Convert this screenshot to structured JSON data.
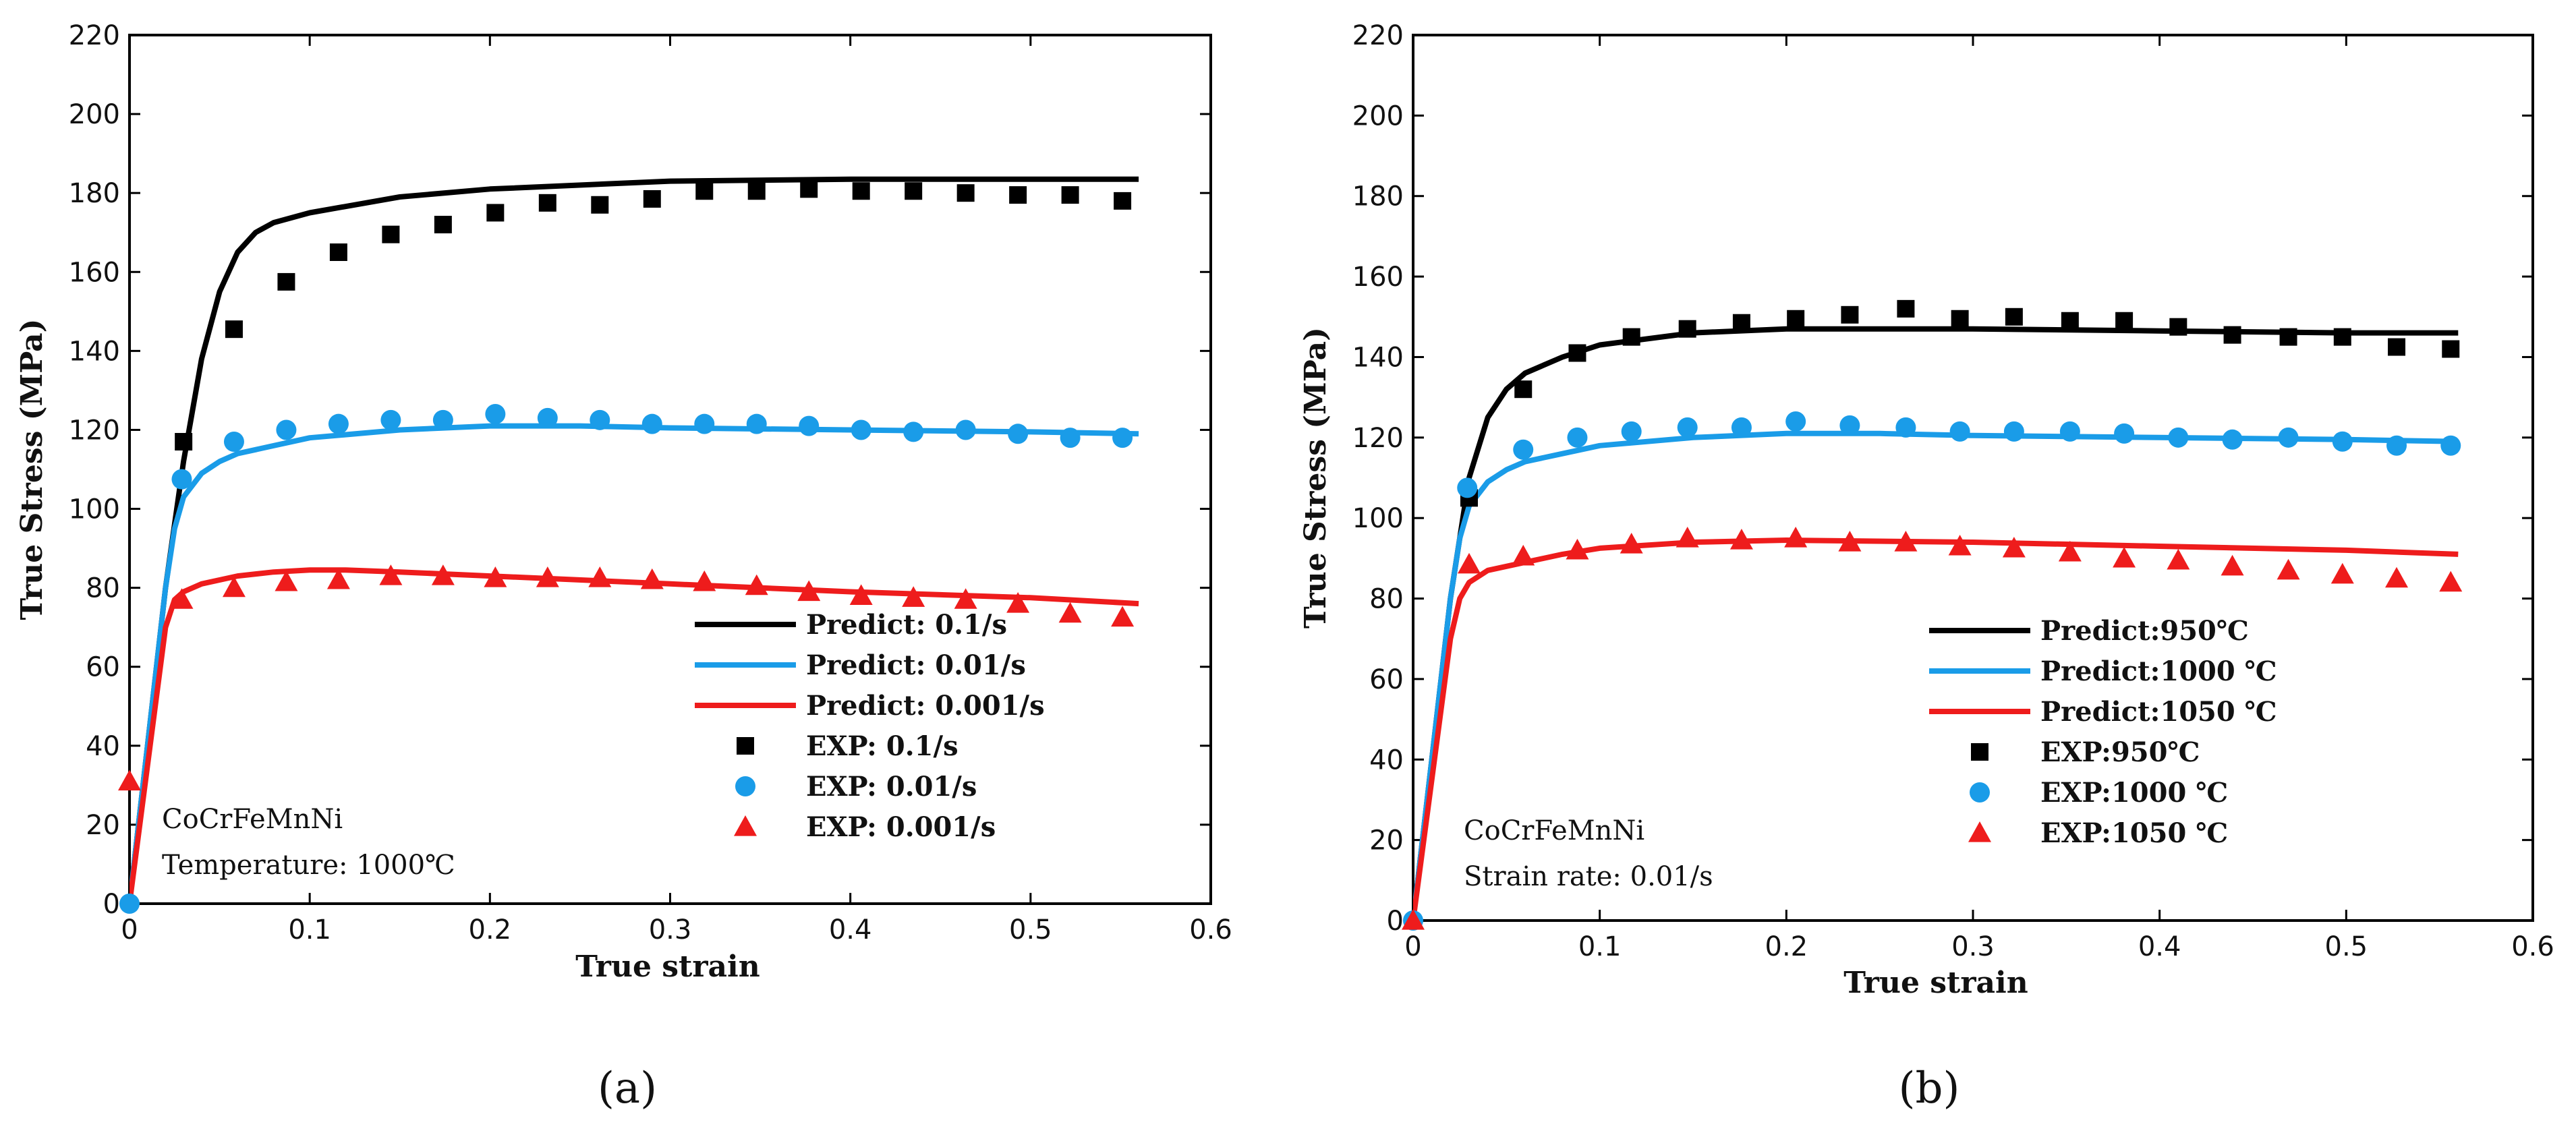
{
  "chart_data": [
    {
      "type": "line",
      "caption": "(a)",
      "xlabel": "True strain",
      "ylabel": "True Stress (MPa)",
      "xlim": [
        0,
        0.6
      ],
      "ylim": [
        0,
        220
      ],
      "xticks": [
        "0",
        "0.1",
        "0.2",
        "0.3",
        "0.4",
        "0.5",
        "0.6"
      ],
      "yticks": [
        "0",
        "20",
        "40",
        "60",
        "80",
        "100",
        "120",
        "140",
        "160",
        "180",
        "200",
        "220"
      ],
      "annotations": [
        "CoCrFeMnNi",
        "Temperature: 1000℃"
      ],
      "legend_position": "bottom-right",
      "series": [
        {
          "name": "Predict: 0.1/s",
          "kind": "line",
          "color": "#000000",
          "x": [
            0,
            0.01,
            0.02,
            0.03,
            0.04,
            0.05,
            0.06,
            0.07,
            0.08,
            0.1,
            0.15,
            0.2,
            0.3,
            0.4,
            0.5,
            0.56
          ],
          "y": [
            0,
            40,
            80,
            112,
            138,
            155,
            165,
            170,
            172.5,
            175,
            179,
            181,
            183,
            183.5,
            183.5,
            183.5
          ]
        },
        {
          "name": "Predict: 0.01/s",
          "kind": "line",
          "color": "#1a9ce8",
          "x": [
            0,
            0.01,
            0.02,
            0.025,
            0.03,
            0.04,
            0.05,
            0.06,
            0.08,
            0.1,
            0.15,
            0.2,
            0.25,
            0.3,
            0.4,
            0.5,
            0.56
          ],
          "y": [
            0,
            40,
            80,
            95,
            103,
            109,
            112,
            114,
            116,
            118,
            120,
            121,
            121,
            120.5,
            120,
            119.5,
            119
          ]
        },
        {
          "name": "Predict: 0.001/s",
          "kind": "line",
          "color": "#ee1c1c",
          "x": [
            0,
            0.01,
            0.02,
            0.025,
            0.03,
            0.04,
            0.06,
            0.08,
            0.1,
            0.12,
            0.15,
            0.2,
            0.3,
            0.4,
            0.5,
            0.56
          ],
          "y": [
            0,
            35,
            70,
            77,
            79,
            81,
            83,
            84,
            84.5,
            84.5,
            84,
            83,
            81,
            79,
            77.5,
            76
          ]
        },
        {
          "name": "EXP: 0.1/s",
          "kind": "square",
          "color": "#000000",
          "x": [
            0.03,
            0.058,
            0.087,
            0.116,
            0.145,
            0.174,
            0.203,
            0.232,
            0.261,
            0.29,
            0.319,
            0.348,
            0.377,
            0.406,
            0.435,
            0.464,
            0.493,
            0.522,
            0.551
          ],
          "y": [
            117,
            145.5,
            157.5,
            165,
            169.5,
            172,
            175,
            177.5,
            177,
            178.5,
            180.5,
            180.5,
            181,
            180.5,
            180.5,
            180,
            179.5,
            179.5,
            178
          ]
        },
        {
          "name": "EXP: 0.01/s",
          "kind": "circle",
          "color": "#1a9ce8",
          "x": [
            0,
            0.029,
            0.058,
            0.087,
            0.116,
            0.145,
            0.174,
            0.203,
            0.232,
            0.261,
            0.29,
            0.319,
            0.348,
            0.377,
            0.406,
            0.435,
            0.464,
            0.493,
            0.522,
            0.551
          ],
          "y": [
            0,
            107.5,
            117,
            120,
            121.5,
            122.5,
            122.5,
            124,
            123,
            122.5,
            121.5,
            121.5,
            121.5,
            121,
            120,
            119.5,
            120,
            119,
            118,
            118
          ]
        },
        {
          "name": "EXP: 0.001/s",
          "kind": "triangle",
          "color": "#ee1c1c",
          "x": [
            0,
            0.029,
            0.058,
            0.087,
            0.116,
            0.145,
            0.174,
            0.203,
            0.232,
            0.261,
            0.29,
            0.319,
            0.348,
            0.377,
            0.406,
            0.435,
            0.464,
            0.493,
            0.522,
            0.551
          ],
          "y": [
            31,
            77,
            80,
            81.5,
            82,
            83,
            83,
            82.5,
            82.5,
            82.5,
            82,
            81.5,
            80.5,
            79,
            78,
            77.5,
            77,
            76,
            73.5,
            72.5
          ]
        }
      ]
    },
    {
      "type": "line",
      "caption": "(b)",
      "xlabel": "True strain",
      "ylabel": "True Stress (MPa)",
      "xlim": [
        0,
        0.6
      ],
      "ylim": [
        0,
        220
      ],
      "xticks": [
        "0",
        "0.1",
        "0.2",
        "0.3",
        "0.4",
        "0.5",
        "0.6"
      ],
      "yticks": [
        "0",
        "20",
        "40",
        "60",
        "80",
        "100",
        "120",
        "140",
        "160",
        "180",
        "200",
        "220"
      ],
      "annotations": [
        "CoCrFeMnNi",
        "Strain rate: 0.01/s"
      ],
      "legend_position": "bottom-right",
      "series": [
        {
          "name": "Predict:950℃",
          "kind": "line",
          "color": "#000000",
          "x": [
            0,
            0.01,
            0.02,
            0.03,
            0.04,
            0.05,
            0.06,
            0.08,
            0.1,
            0.15,
            0.2,
            0.3,
            0.4,
            0.5,
            0.56
          ],
          "y": [
            0,
            40,
            80,
            110,
            125,
            132,
            136,
            140,
            143,
            146,
            147,
            147,
            146.5,
            146,
            146
          ]
        },
        {
          "name": "Predict:1000 ℃",
          "kind": "line",
          "color": "#1a9ce8",
          "x": [
            0,
            0.01,
            0.02,
            0.025,
            0.03,
            0.04,
            0.05,
            0.06,
            0.08,
            0.1,
            0.15,
            0.2,
            0.25,
            0.3,
            0.4,
            0.5,
            0.56
          ],
          "y": [
            0,
            40,
            80,
            95,
            103,
            109,
            112,
            114,
            116,
            118,
            120,
            121,
            121,
            120.5,
            120,
            119.5,
            119
          ]
        },
        {
          "name": "Predict:1050 ℃",
          "kind": "line",
          "color": "#ee1c1c",
          "x": [
            0,
            0.01,
            0.02,
            0.025,
            0.03,
            0.04,
            0.06,
            0.08,
            0.1,
            0.15,
            0.2,
            0.3,
            0.4,
            0.5,
            0.56
          ],
          "y": [
            0,
            35,
            70,
            80,
            84,
            87,
            89,
            91,
            92.5,
            94,
            94.5,
            94,
            93,
            92,
            91
          ]
        },
        {
          "name": "EXP:950℃",
          "kind": "square",
          "color": "#000000",
          "x": [
            0.03,
            0.059,
            0.088,
            0.117,
            0.147,
            0.176,
            0.205,
            0.234,
            0.264,
            0.293,
            0.322,
            0.352,
            0.381,
            0.41,
            0.439,
            0.469,
            0.498,
            0.527,
            0.556
          ],
          "y": [
            105,
            132,
            141,
            145,
            147,
            148.5,
            149.5,
            150.5,
            152,
            149.5,
            150,
            149,
            149,
            147.5,
            145.5,
            145,
            145,
            142.5,
            142
          ]
        },
        {
          "name": "EXP:1000 ℃",
          "kind": "circle",
          "color": "#1a9ce8",
          "x": [
            0,
            0.029,
            0.059,
            0.088,
            0.117,
            0.147,
            0.176,
            0.205,
            0.234,
            0.264,
            0.293,
            0.322,
            0.352,
            0.381,
            0.41,
            0.439,
            0.469,
            0.498,
            0.527,
            0.556
          ],
          "y": [
            0,
            107.5,
            117,
            120,
            121.5,
            122.5,
            122.5,
            124,
            123,
            122.5,
            121.5,
            121.5,
            121.5,
            121,
            120,
            119.5,
            120,
            119,
            118,
            118
          ]
        },
        {
          "name": "EXP:1050 ℃",
          "kind": "triangle",
          "color": "#ee1c1c",
          "x": [
            0,
            0.03,
            0.059,
            0.088,
            0.117,
            0.147,
            0.176,
            0.205,
            0.234,
            0.264,
            0.293,
            0.322,
            0.352,
            0.381,
            0.41,
            0.439,
            0.469,
            0.498,
            0.527,
            0.556
          ],
          "y": [
            0,
            88.5,
            90.5,
            92,
            93.5,
            95,
            94.5,
            95,
            94,
            94,
            93,
            92.5,
            91.5,
            90,
            89.5,
            88,
            87,
            86,
            85,
            84
          ]
        }
      ]
    }
  ]
}
